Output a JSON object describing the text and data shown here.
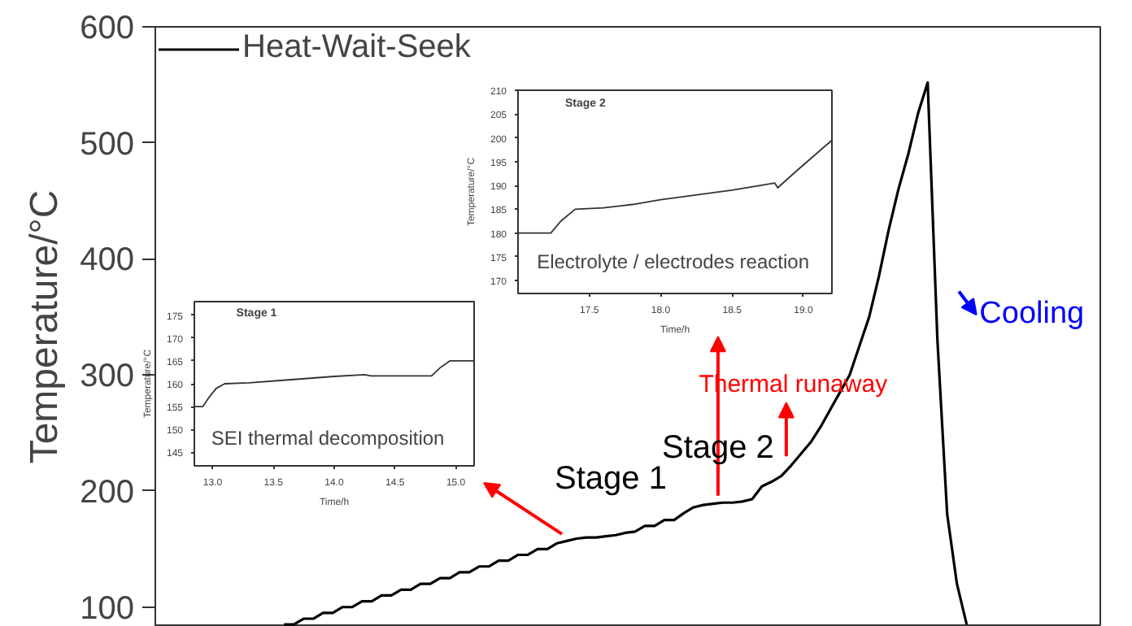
{
  "chart_data": [
    {
      "type": "line",
      "categories": [
        null,
        null,
        null,
        null,
        null,
        null,
        null,
        null,
        null,
        null,
        null,
        null,
        null,
        null,
        null,
        null,
        null,
        null,
        null,
        null,
        null,
        null,
        null,
        null,
        null,
        null,
        null,
        null,
        null,
        null,
        null,
        null,
        null,
        null,
        null,
        null,
        null,
        null,
        null,
        null,
        null,
        null,
        null,
        null,
        null,
        null,
        null,
        null,
        null,
        null,
        null,
        null,
        null,
        null,
        null,
        null,
        null,
        null,
        null,
        null,
        null,
        null,
        null,
        null,
        null,
        null,
        null,
        null,
        null,
        null,
        null
      ],
      "series": [
        {
          "name": "Heat-Wait-Seek",
          "color": "#000000",
          "values": [
            85,
            85,
            90,
            90,
            95,
            95,
            100,
            100,
            105,
            105,
            110,
            110,
            115,
            115,
            120,
            120,
            125,
            125,
            130,
            130,
            135,
            135,
            140,
            140,
            145,
            145,
            150,
            150,
            155,
            157,
            159,
            160,
            160,
            161,
            162,
            164,
            165,
            170,
            170,
            175,
            175,
            181,
            186,
            188,
            189,
            190,
            190,
            191,
            193,
            204,
            208,
            213,
            222,
            232,
            242,
            255,
            270,
            285,
            300,
            325,
            350,
            385,
            425,
            460,
            490,
            525,
            552,
            330,
            180,
            120,
            85
          ]
        }
      ],
      "ylabel": "Temperature/°C",
      "ylim": [
        83,
        600
      ],
      "yticks": [
        100,
        200,
        300,
        400,
        500,
        600
      ],
      "legend": "top left",
      "grid": false,
      "annotations": [
        "Stage 1",
        "Stage 2",
        "Thermal runaway",
        "Cooling"
      ]
    },
    {
      "type": "line",
      "title": "Stage 1",
      "xlabel": "Time/h",
      "ylabel": "Temperature/°C",
      "x": [
        12.85,
        12.92,
        12.97,
        13.03,
        13.1,
        13.3,
        13.6,
        14.0,
        14.25,
        14.3,
        14.8,
        14.87,
        14.95,
        15.15
      ],
      "series": [
        {
          "color": "#333333",
          "values": [
            155,
            155,
            157,
            159,
            160,
            160.2,
            160.8,
            161.6,
            162,
            161.7,
            161.7,
            163.5,
            165,
            165
          ]
        }
      ],
      "xlim": [
        12.85,
        15.15
      ],
      "xticks": [
        {
          "value": 13,
          "label": "13.0"
        },
        13.5,
        {
          "value": 14,
          "label": "14.0"
        },
        14.5,
        {
          "value": 15,
          "label": "15.0"
        }
      ],
      "ylim": [
        142,
        178
      ],
      "yticks": [
        145,
        150,
        155,
        160,
        165,
        170,
        175
      ],
      "grid": false,
      "annotations": [
        "SEI thermal decomposition"
      ]
    },
    {
      "type": "line",
      "title": "Stage 2",
      "xlabel": "Time/h",
      "ylabel": "Temperature/°C",
      "x": [
        17.0,
        17.23,
        17.3,
        17.4,
        17.6,
        17.8,
        18.0,
        18.5,
        18.8,
        18.82,
        18.95,
        19.2
      ],
      "series": [
        {
          "color": "#333333",
          "values": [
            180,
            180,
            182.5,
            185,
            185.3,
            186,
            187,
            189,
            190.5,
            189.5,
            193,
            199.5
          ]
        }
      ],
      "xlim": [
        17.0,
        19.2
      ],
      "xticks": [
        17.5,
        {
          "value": 18,
          "label": "18.0"
        },
        18.5,
        {
          "value": 19,
          "label": "19.0"
        }
      ],
      "ylim": [
        167.3,
        210
      ],
      "yticks": [
        170,
        175,
        180,
        185,
        190,
        195,
        200,
        205,
        210
      ],
      "grid": false,
      "annotations": [
        "Electrolyte / electrodes reaction"
      ]
    }
  ]
}
